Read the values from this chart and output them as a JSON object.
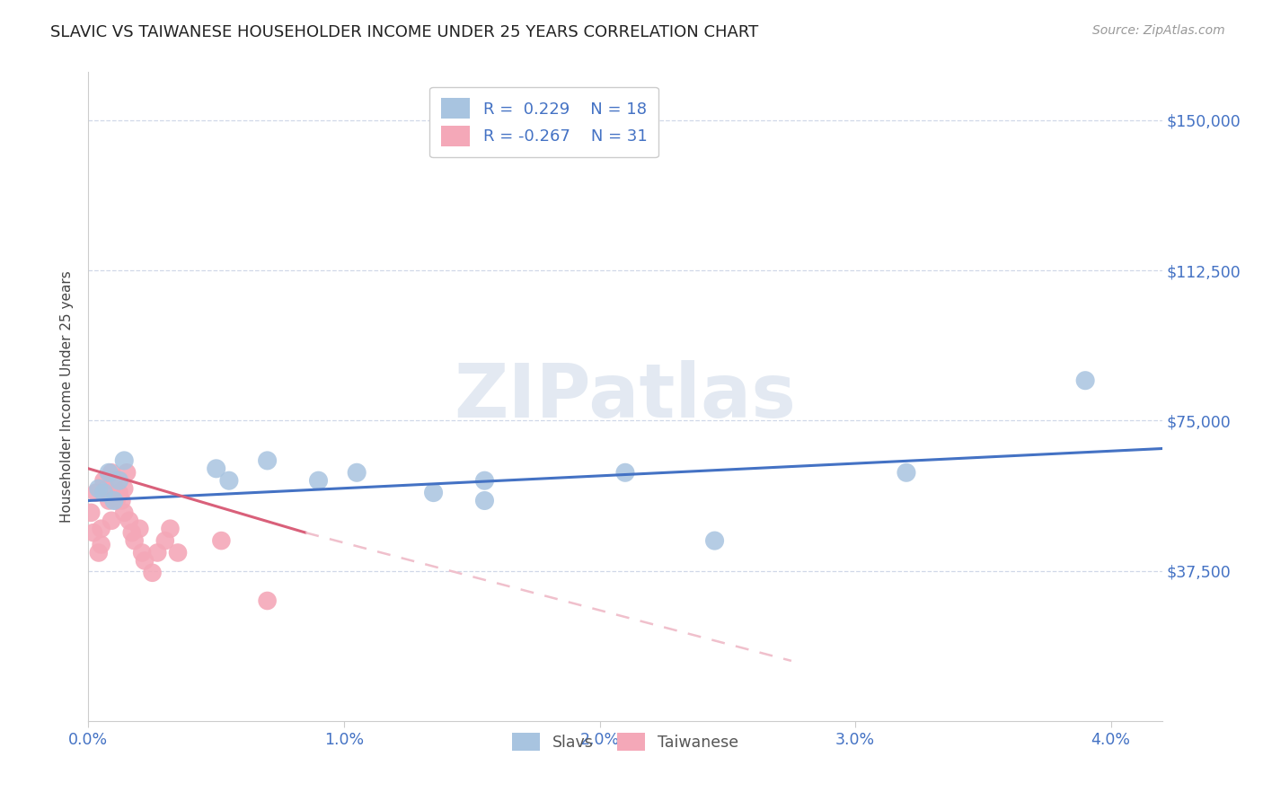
{
  "title": "SLAVIC VS TAIWANESE HOUSEHOLDER INCOME UNDER 25 YEARS CORRELATION CHART",
  "source": "Source: ZipAtlas.com",
  "ylabel": "Householder Income Under 25 years",
  "xlabel_ticks": [
    "0.0%",
    "1.0%",
    "2.0%",
    "3.0%",
    "4.0%"
  ],
  "xlabel_vals": [
    0.0,
    1.0,
    2.0,
    3.0,
    4.0
  ],
  "ylabel_ticks": [
    "$37,500",
    "$75,000",
    "$112,500",
    "$150,000"
  ],
  "ylabel_vals": [
    37500,
    75000,
    112500,
    150000
  ],
  "xlim": [
    0.0,
    4.2
  ],
  "ylim": [
    0,
    162000
  ],
  "slavs_R": 0.229,
  "slavs_N": 18,
  "taiwanese_R": -0.267,
  "taiwanese_N": 31,
  "slavs_color": "#a8c4e0",
  "taiwanese_color": "#f4a8b8",
  "slavs_line_color": "#4472c4",
  "taiwanese_line_color": "#d9607a",
  "taiwanese_line_dashed_color": "#f0c0cc",
  "slavs_x": [
    0.04,
    0.06,
    0.08,
    0.1,
    0.12,
    0.14,
    0.5,
    0.55,
    0.7,
    0.9,
    1.05,
    1.35,
    1.55,
    1.55,
    2.1,
    2.45,
    3.2,
    3.9
  ],
  "slavs_y": [
    58000,
    57000,
    62000,
    55000,
    60000,
    65000,
    63000,
    60000,
    65000,
    60000,
    62000,
    57000,
    60000,
    55000,
    62000,
    45000,
    62000,
    85000
  ],
  "taiwanese_x": [
    0.01,
    0.02,
    0.03,
    0.04,
    0.05,
    0.05,
    0.06,
    0.07,
    0.08,
    0.09,
    0.09,
    0.1,
    0.11,
    0.12,
    0.13,
    0.14,
    0.14,
    0.15,
    0.16,
    0.17,
    0.18,
    0.2,
    0.21,
    0.22,
    0.25,
    0.27,
    0.3,
    0.32,
    0.35,
    0.52,
    0.7
  ],
  "taiwanese_y": [
    52000,
    47000,
    57000,
    42000,
    48000,
    44000,
    60000,
    58000,
    55000,
    62000,
    50000,
    60000,
    55000,
    57000,
    55000,
    52000,
    58000,
    62000,
    50000,
    47000,
    45000,
    48000,
    42000,
    40000,
    37000,
    42000,
    45000,
    48000,
    42000,
    45000,
    30000
  ],
  "slavs_line_x0": 0.0,
  "slavs_line_y0": 55000,
  "slavs_line_x1": 4.2,
  "slavs_line_y1": 68000,
  "taiwanese_solid_x0": 0.0,
  "taiwanese_solid_y0": 63000,
  "taiwanese_solid_x1": 0.85,
  "taiwanese_solid_y1": 47000,
  "taiwanese_dash_x0": 0.85,
  "taiwanese_dash_y0": 47000,
  "taiwanese_dash_x1": 2.75,
  "taiwanese_dash_y1": 15000,
  "watermark_text": "ZIPatlas",
  "background_color": "#ffffff",
  "grid_color": "#d0d8e8",
  "title_color": "#333333"
}
